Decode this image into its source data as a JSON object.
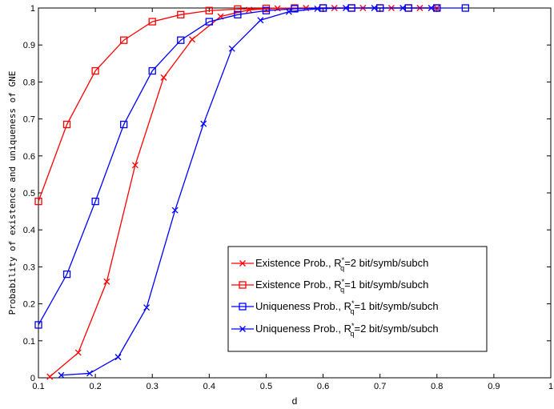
{
  "chart_data": {
    "type": "line",
    "xlabel": "d",
    "ylabel": "Probability of existence and uniqueness of GNE",
    "xlim": [
      0.1,
      1.0
    ],
    "ylim": [
      0,
      1
    ],
    "xticks": [
      "0.1",
      "0.2",
      "0.3",
      "0.4",
      "0.5",
      "0.6",
      "0.7",
      "0.8",
      "0.9",
      "1"
    ],
    "yticks": [
      "0",
      "0.1",
      "0.2",
      "0.3",
      "0.4",
      "0.5",
      "0.6",
      "0.7",
      "0.8",
      "0.9",
      "1"
    ],
    "grid": false,
    "legend_position": "lower-right",
    "series": [
      {
        "legend_main": "Existence Prob., R",
        "legend_sup": "*",
        "legend_sub": "q",
        "legend_rest": "=2 bit/symb/subch",
        "color": "#ff0000",
        "marker": "x",
        "x": [
          0.12,
          0.17,
          0.22,
          0.27,
          0.32,
          0.37,
          0.42,
          0.47,
          0.52,
          0.57,
          0.62,
          0.67,
          0.72,
          0.77,
          0.8
        ],
        "y": [
          0.003,
          0.068,
          0.26,
          0.575,
          0.812,
          0.915,
          0.977,
          0.995,
          0.999,
          1.0,
          1.0,
          1.0,
          1.0,
          1.0,
          1.0
        ]
      },
      {
        "legend_main": "Existence Prob., R",
        "legend_sup": "*",
        "legend_sub": "q",
        "legend_rest": "=1 bit/symb/subch",
        "color": "#ff0000",
        "marker": "square",
        "x": [
          0.1,
          0.15,
          0.2,
          0.25,
          0.3,
          0.35,
          0.4,
          0.45,
          0.5,
          0.55,
          0.6,
          0.65,
          0.7,
          0.75,
          0.8
        ],
        "y": [
          0.477,
          0.685,
          0.83,
          0.913,
          0.963,
          0.982,
          0.993,
          0.997,
          0.999,
          1.0,
          1.0,
          1.0,
          1.0,
          1.0,
          1.0
        ]
      },
      {
        "legend_main": "Uniqueness Prob., R",
        "legend_sup": "*",
        "legend_sub": "q",
        "legend_rest": "=1 bit/symb/subch",
        "color": "#0000ff",
        "marker": "square",
        "x": [
          0.1,
          0.15,
          0.2,
          0.25,
          0.3,
          0.35,
          0.4,
          0.45,
          0.5,
          0.55,
          0.6,
          0.65,
          0.7,
          0.75,
          0.8,
          0.85
        ],
        "y": [
          0.143,
          0.28,
          0.477,
          0.685,
          0.83,
          0.913,
          0.963,
          0.982,
          0.993,
          0.998,
          1.0,
          1.0,
          1.0,
          1.0,
          1.0,
          1.0
        ]
      },
      {
        "legend_main": "Uniqueness Prob., R",
        "legend_sup": "*",
        "legend_sub": "q",
        "legend_rest": "=2 bit/symb/subch",
        "color": "#0000ff",
        "marker": "x",
        "x": [
          0.14,
          0.19,
          0.24,
          0.29,
          0.34,
          0.39,
          0.44,
          0.49,
          0.54,
          0.59,
          0.64,
          0.69,
          0.74,
          0.79
        ],
        "y": [
          0.007,
          0.012,
          0.056,
          0.19,
          0.453,
          0.687,
          0.89,
          0.967,
          0.99,
          0.998,
          1.0,
          1.0,
          1.0,
          1.0
        ]
      }
    ]
  }
}
